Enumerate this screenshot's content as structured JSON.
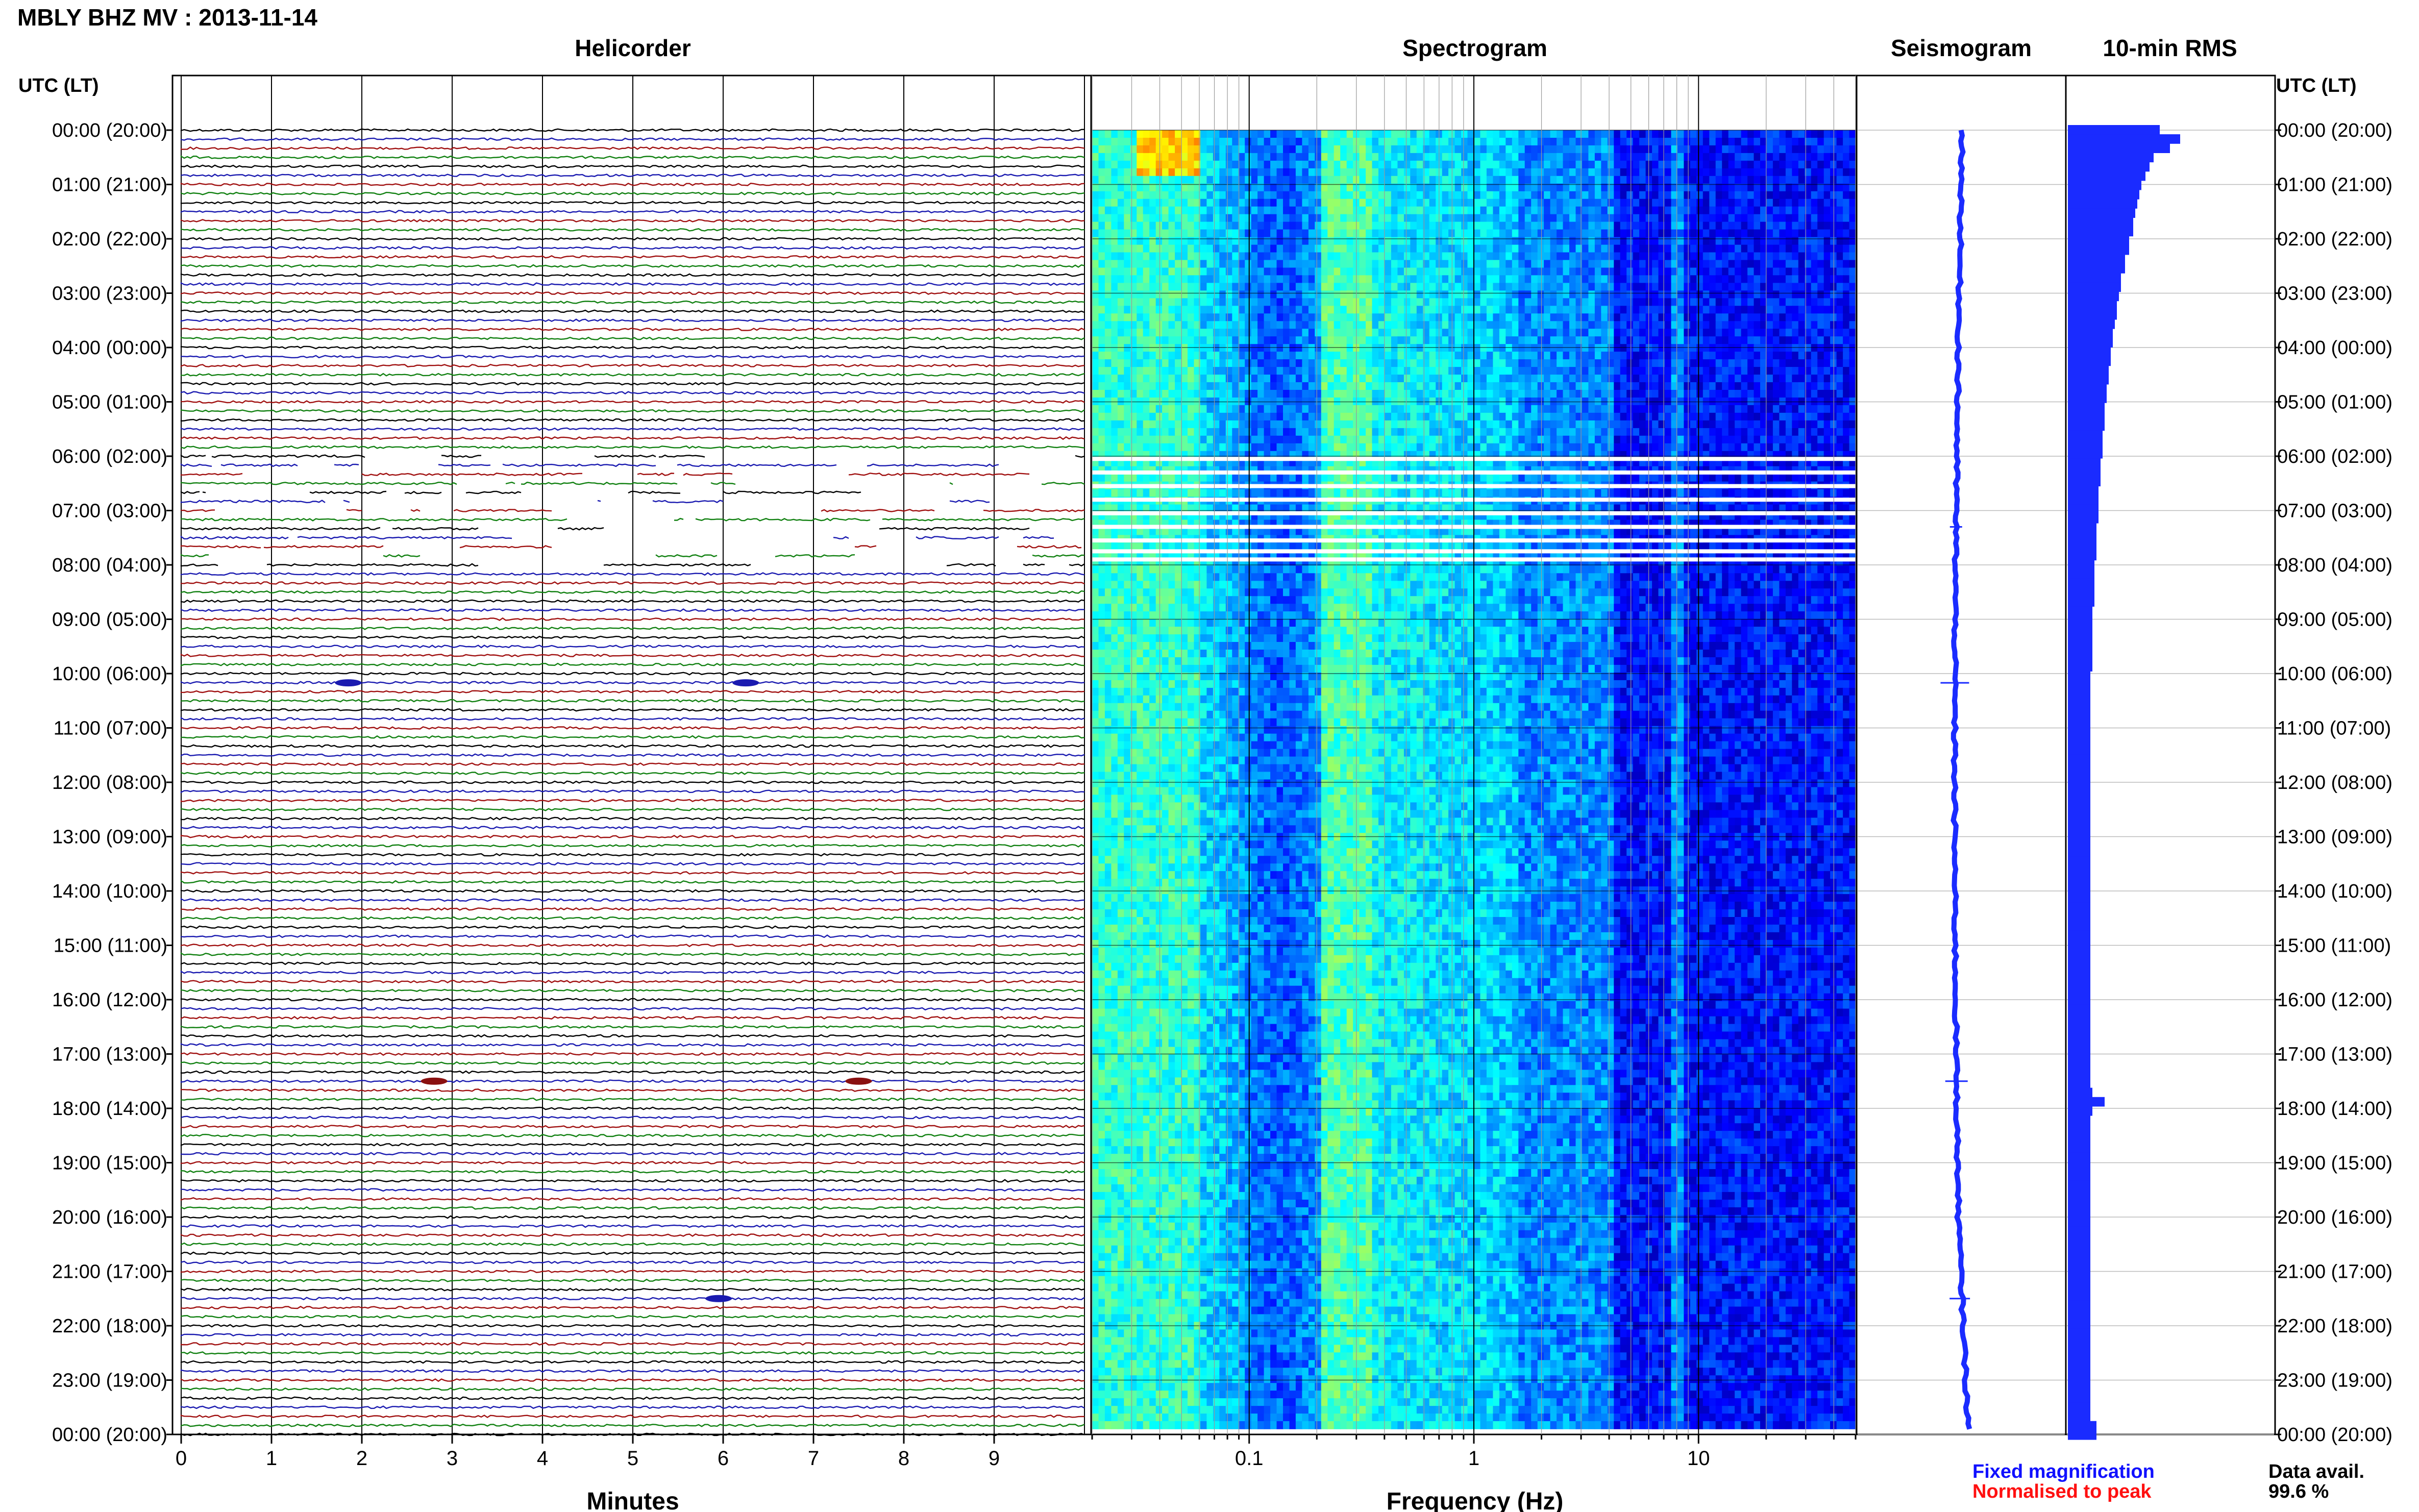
{
  "header": {
    "title": "MBLY BHZ MV : 2013-11-14"
  },
  "panels": {
    "helicorder": "Helicorder",
    "spectrogram": "Spectrogram",
    "seismogram": "Seismogram",
    "rms": "10-min RMS"
  },
  "axes": {
    "left_label": "UTC (LT)",
    "right_label": "UTC (LT)",
    "minutes_label": "Minutes",
    "frequency_label": "Frequency (Hz)"
  },
  "time_labels": [
    "00:00 (20:00)",
    "01:00 (21:00)",
    "02:00 (22:00)",
    "03:00 (23:00)",
    "04:00 (00:00)",
    "05:00 (01:00)",
    "06:00 (02:00)",
    "07:00 (03:00)",
    "08:00 (04:00)",
    "09:00 (05:00)",
    "10:00 (06:00)",
    "11:00 (07:00)",
    "12:00 (08:00)",
    "13:00 (09:00)",
    "14:00 (10:00)",
    "15:00 (11:00)",
    "16:00 (12:00)",
    "17:00 (13:00)",
    "18:00 (14:00)",
    "19:00 (15:00)",
    "20:00 (16:00)",
    "21:00 (17:00)",
    "22:00 (18:00)",
    "23:00 (19:00)",
    "00:00 (20:00)"
  ],
  "minute_ticks": [
    "0",
    "1",
    "2",
    "3",
    "4",
    "5",
    "6",
    "7",
    "8",
    "9"
  ],
  "frequency_ticks": [
    {
      "value": 0.1,
      "label": "0.1"
    },
    {
      "value": 1,
      "label": "1"
    },
    {
      "value": 10,
      "label": "10"
    }
  ],
  "legend": {
    "fixed": "Fixed magnification",
    "normalised": "Normalised to peak",
    "availability_label": "Data avail.",
    "availability_value": "99.6 %"
  },
  "colors": {
    "fixed": "#1010ff",
    "normalised": "#ff1010",
    "trace_cycle": [
      "#000000",
      "#1a1ab0",
      "#a01010",
      "#108010"
    ],
    "seismogram": "#1a2bff",
    "rms": "#1a2bff"
  },
  "chart_data": [
    {
      "type": "line",
      "name": "helicorder",
      "title": "Helicorder",
      "xlabel": "Minutes",
      "xlim": [
        0,
        10
      ],
      "rows_per_hour": 6,
      "hours": 24,
      "gaps_hour_range": [
        6.0,
        8.0
      ],
      "events": [
        {
          "hour": 10.17,
          "minute": 1.85
        },
        {
          "hour": 10.17,
          "minute": 6.25
        },
        {
          "hour": 17.5,
          "minute": 2.8
        },
        {
          "hour": 17.5,
          "minute": 7.5
        },
        {
          "hour": 21.5,
          "minute": 5.95
        }
      ]
    },
    {
      "type": "heatmap",
      "name": "spectrogram",
      "title": "Spectrogram",
      "xlabel": "Frequency (Hz)",
      "xscale": "log",
      "xlim": [
        0.02,
        50
      ],
      "gap_hours": [
        6.05,
        6.3,
        6.55,
        6.8,
        7.05,
        7.3,
        7.55,
        7.75,
        7.9
      ]
    },
    {
      "type": "line",
      "name": "seismogram",
      "title": "Seismogram"
    },
    {
      "type": "bar",
      "name": "rms",
      "title": "10-min RMS",
      "note": "bar length relative units",
      "values": [
        0.45,
        0.55,
        0.5,
        0.42,
        0.4,
        0.38,
        0.36,
        0.35,
        0.34,
        0.33,
        0.32,
        0.32,
        0.3,
        0.3,
        0.28,
        0.28,
        0.26,
        0.26,
        0.25,
        0.24,
        0.24,
        0.23,
        0.22,
        0.22,
        0.21,
        0.21,
        0.2,
        0.2,
        0.19,
        0.19,
        0.18,
        0.18,
        0.18,
        0.17,
        0.17,
        0.17,
        0.16,
        0.16,
        0.16,
        0.15,
        0.15,
        0.15,
        0.15,
        0.14,
        0.14,
        0.14,
        0.14,
        0.13,
        0.13,
        0.13,
        0.13,
        0.13,
        0.12,
        0.12,
        0.12,
        0.12,
        0.12,
        0.12,
        0.12,
        0.11,
        0.11,
        0.11,
        0.11,
        0.11,
        0.11,
        0.11,
        0.11,
        0.11,
        0.11,
        0.11,
        0.11,
        0.11,
        0.11,
        0.11,
        0.11,
        0.11,
        0.11,
        0.11,
        0.11,
        0.11,
        0.11,
        0.11,
        0.11,
        0.11,
        0.11,
        0.11,
        0.11,
        0.11,
        0.11,
        0.11,
        0.11,
        0.11,
        0.11,
        0.11,
        0.11,
        0.11,
        0.11,
        0.11,
        0.11,
        0.11,
        0.11,
        0.11,
        0.11,
        0.11,
        0.12,
        0.18,
        0.12,
        0.11,
        0.11,
        0.11,
        0.11,
        0.11,
        0.11,
        0.11,
        0.11,
        0.11,
        0.11,
        0.11,
        0.11,
        0.11,
        0.11,
        0.11,
        0.11,
        0.11,
        0.11,
        0.11,
        0.11,
        0.11,
        0.11,
        0.11,
        0.11,
        0.11,
        0.11,
        0.11,
        0.11,
        0.11,
        0.11,
        0.11,
        0.11,
        0.11,
        0.14,
        0.14
      ]
    }
  ]
}
